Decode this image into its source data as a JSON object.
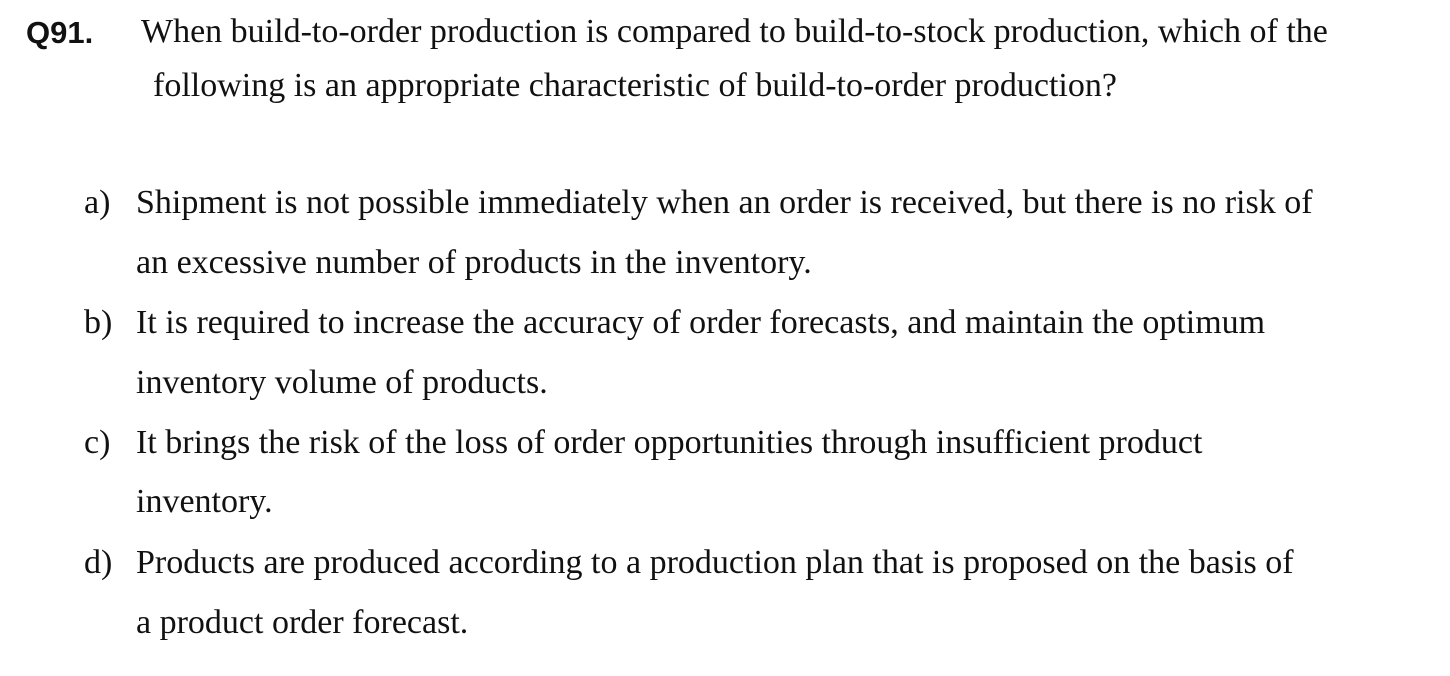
{
  "question": {
    "number": "Q91.",
    "text_lines": [
      "When build-to-order production is compared to build-to-stock production, which of the",
      "following is an appropriate characteristic of build-to-order production?"
    ]
  },
  "options": [
    {
      "letter": "a)",
      "lines": [
        "Shipment is not possible immediately when an order is received, but there is no risk of",
        "an excessive number of products in the inventory."
      ]
    },
    {
      "letter": "b)",
      "lines": [
        "It is required to increase the accuracy of order forecasts, and maintain the optimum",
        "inventory volume of products."
      ]
    },
    {
      "letter": "c)",
      "lines": [
        "It brings the risk of the loss of order opportunities through insufficient product",
        "inventory."
      ]
    },
    {
      "letter": "d)",
      "lines": [
        "Products are produced according to a production plan that is proposed on the basis of",
        "a product order forecast."
      ]
    }
  ]
}
